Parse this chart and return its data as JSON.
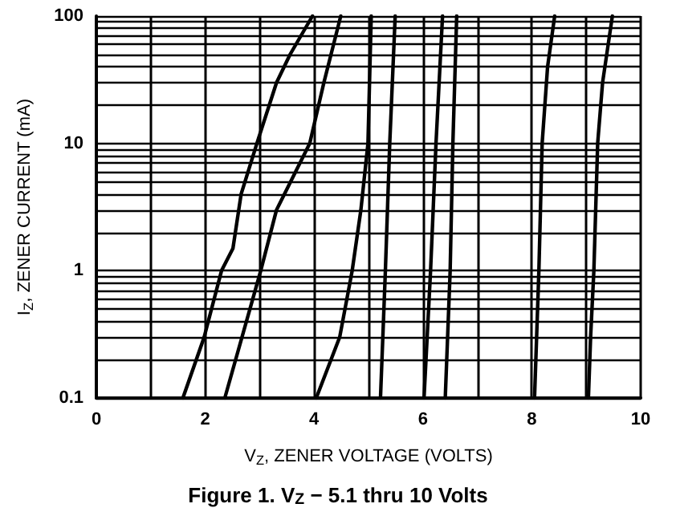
{
  "chart_data": {
    "type": "line",
    "title": "Figure 1. V$_{Z}$ − 5.1 thru 10 Volts",
    "xlabel": "V$_{Z}$, ZENER VOLTAGE (VOLTS)",
    "ylabel": "I$_{Z}$, ZENER CURRENT (mA)",
    "xlim": [
      0,
      10
    ],
    "ylim": [
      0.1,
      100
    ],
    "log": "y",
    "grid": true,
    "marker": "none",
    "line_style": "solid",
    "xticks": [
      0,
      {
        "value": 1,
        "label": null
      },
      2,
      {
        "value": 3,
        "label": null
      },
      4,
      {
        "value": 5,
        "label": null
      },
      6,
      {
        "value": 7,
        "label": null
      },
      8,
      {
        "value": 9,
        "label": null
      },
      10
    ],
    "yticks": [
      0.1,
      {
        "value": 0.2,
        "label": null
      },
      {
        "value": 0.3,
        "label": null
      },
      {
        "value": 0.4,
        "label": null
      },
      {
        "value": 0.5,
        "label": null
      },
      {
        "value": 0.6,
        "label": null
      },
      {
        "value": 0.7,
        "label": null
      },
      {
        "value": 0.8,
        "label": null
      },
      {
        "value": 0.9,
        "label": null
      },
      1,
      {
        "value": 2,
        "label": null
      },
      {
        "value": 3,
        "label": null
      },
      {
        "value": 4,
        "label": null
      },
      {
        "value": 5,
        "label": null
      },
      {
        "value": 6,
        "label": null
      },
      {
        "value": 7,
        "label": null
      },
      {
        "value": 8,
        "label": null
      },
      {
        "value": 9,
        "label": null
      },
      10,
      {
        "value": 20,
        "label": null
      },
      {
        "value": 30,
        "label": null
      },
      {
        "value": 40,
        "label": null
      },
      {
        "value": 50,
        "label": null
      },
      {
        "value": 60,
        "label": null
      },
      {
        "value": 70,
        "label": null
      },
      {
        "value": 80,
        "label": null
      },
      {
        "value": 90,
        "label": null
      },
      100
    ],
    "series": [
      {
        "color": "#000000",
        "x": [
          1.59,
          1.98,
          2.3,
          2.51,
          2.66,
          2.95,
          3.31,
          3.56,
          3.97
        ],
        "values": [
          0.1,
          0.3,
          1,
          1.5,
          4,
          10,
          30,
          50,
          100
        ]
      },
      {
        "color": "#000000",
        "x": [
          2.36,
          3.02,
          3.31,
          3.92,
          4.18,
          4.49
        ],
        "values": [
          0.1,
          1,
          3,
          10,
          30,
          100
        ]
      },
      {
        "color": "#000000",
        "x": [
          4.04,
          4.47,
          4.7,
          4.86,
          4.99,
          5.05
        ],
        "values": [
          0.1,
          0.3,
          1,
          3,
          10,
          100
        ]
      },
      {
        "color": "#000000",
        "x": [
          5.22,
          5.31,
          5.39,
          5.49
        ],
        "values": [
          0.1,
          1,
          10,
          100
        ]
      },
      {
        "color": "#000000",
        "x": [
          6.02,
          6.14,
          6.24,
          6.36
        ],
        "values": [
          0.1,
          1,
          10,
          100
        ]
      },
      {
        "color": "#000000",
        "x": [
          6.41,
          6.5,
          6.55,
          6.62
        ],
        "values": [
          0.1,
          1,
          10,
          100
        ]
      },
      {
        "color": "#000000",
        "x": [
          8.05,
          8.13,
          8.19,
          8.29,
          8.42
        ],
        "values": [
          0.1,
          1,
          10,
          40,
          100
        ]
      },
      {
        "color": "#000000",
        "x": [
          9.04,
          9.08,
          9.14,
          9.21,
          9.3,
          9.48
        ],
        "values": [
          0.1,
          0.3,
          1,
          10,
          30,
          100
        ]
      }
    ]
  }
}
